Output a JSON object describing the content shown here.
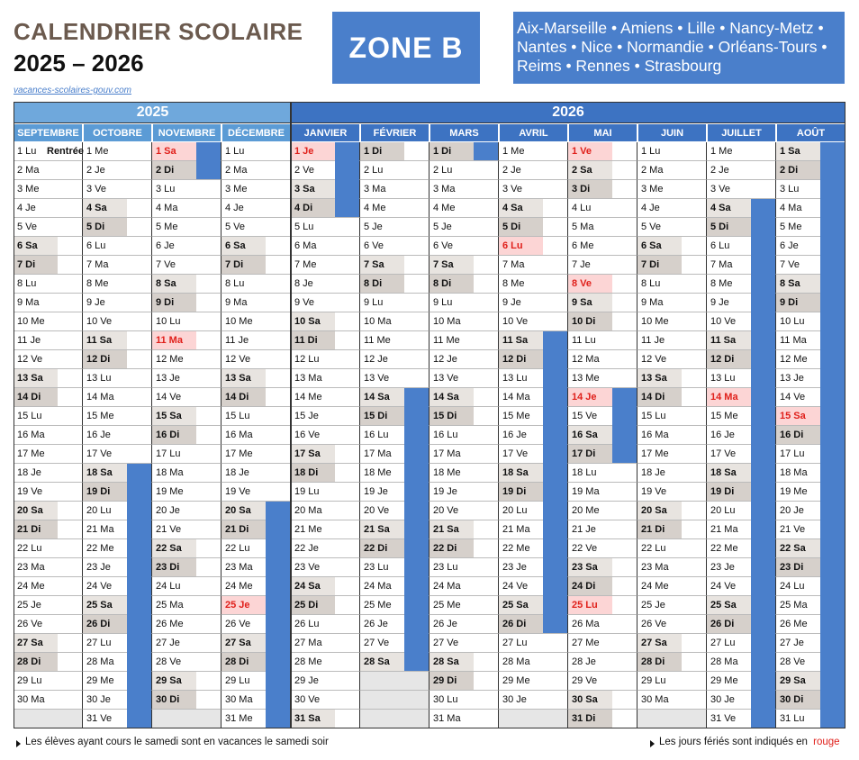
{
  "header": {
    "title": "CALENDRIER SCOLAIRE",
    "years": "2025 – 2026",
    "source": "vacances-scolaires-gouv.com",
    "zone": "ZONE B",
    "academies": [
      "Aix-Marseille • Amiens • Lille • Nancy-Metz •",
      "Nantes • Nice • Normandie • Orléans-Tours •",
      "Reims • Rennes • Strasbourg"
    ]
  },
  "calendar": {
    "years": [
      "2025",
      "2026"
    ],
    "months": [
      {
        "name": "SEPTEMBRE",
        "note": {
          "day": 1,
          "text": "Rentrée"
        },
        "holidays": [],
        "days": [
          "1 Lu",
          "2 Ma",
          "3 Me",
          "4 Je",
          "5 Ve",
          "6 Sa",
          "7 Di",
          "8 Lu",
          "9 Ma",
          "10 Me",
          "11 Je",
          "12 Ve",
          "13 Sa",
          "14 Di",
          "15 Lu",
          "16 Ma",
          "17 Me",
          "18 Je",
          "19 Ve",
          "20 Sa",
          "21 Di",
          "22 Lu",
          "23 Ma",
          "24 Me",
          "25 Je",
          "26 Ve",
          "27 Sa",
          "28 Di",
          "29 Lu",
          "30 Ma"
        ]
      },
      {
        "name": "OCTOBRE",
        "holidays": [],
        "vacation": [
          18,
          31
        ],
        "days": [
          "1 Me",
          "2 Je",
          "3 Ve",
          "4 Sa",
          "5 Di",
          "6 Lu",
          "7 Ma",
          "8 Me",
          "9 Je",
          "10 Ve",
          "11 Sa",
          "12 Di",
          "13 Lu",
          "14 Ma",
          "15 Me",
          "16 Je",
          "17 Ve",
          "18 Sa",
          "19 Di",
          "20 Lu",
          "21 Ma",
          "22 Me",
          "23 Je",
          "24 Ve",
          "25 Sa",
          "26 Di",
          "27 Lu",
          "28 Ma",
          "29 Me",
          "30 Je",
          "31 Ve"
        ]
      },
      {
        "name": "NOVEMBRE",
        "holidays": [
          1,
          11
        ],
        "vacation": [
          1,
          2
        ],
        "days": [
          "1 Sa",
          "2 Di",
          "3 Lu",
          "4 Ma",
          "5 Me",
          "6 Je",
          "7 Ve",
          "8 Sa",
          "9 Di",
          "10 Lu",
          "11 Ma",
          "12 Me",
          "13 Je",
          "14 Ve",
          "15 Sa",
          "16 Di",
          "17 Lu",
          "18 Ma",
          "19 Me",
          "20 Je",
          "21 Ve",
          "22 Sa",
          "23 Di",
          "24 Lu",
          "25 Ma",
          "26 Me",
          "27 Je",
          "28 Ve",
          "29 Sa",
          "30 Di"
        ]
      },
      {
        "name": "DÉCEMBRE",
        "holidays": [
          25
        ],
        "vacation": [
          20,
          31
        ],
        "days": [
          "1 Lu",
          "2 Ma",
          "3 Me",
          "4 Je",
          "5 Ve",
          "6 Sa",
          "7 Di",
          "8 Lu",
          "9 Ma",
          "10 Me",
          "11 Je",
          "12 Ve",
          "13 Sa",
          "14 Di",
          "15 Lu",
          "16 Ma",
          "17 Me",
          "18 Je",
          "19 Ve",
          "20 Sa",
          "21 Di",
          "22 Lu",
          "23 Ma",
          "24 Me",
          "25 Je",
          "26 Ve",
          "27 Sa",
          "28 Di",
          "29 Lu",
          "30 Ma",
          "31 Me"
        ]
      },
      {
        "name": "JANVIER",
        "holidays": [
          1
        ],
        "vacation": [
          1,
          4
        ],
        "days": [
          "1 Je",
          "2 Ve",
          "3 Sa",
          "4 Di",
          "5 Lu",
          "6 Ma",
          "7 Me",
          "8 Je",
          "9 Ve",
          "10 Sa",
          "11 Di",
          "12 Lu",
          "13 Ma",
          "14 Me",
          "15 Je",
          "16 Ve",
          "17 Sa",
          "18 Di",
          "19 Lu",
          "20 Ma",
          "21 Me",
          "22 Je",
          "23 Ve",
          "24 Sa",
          "25 Di",
          "26 Lu",
          "27 Ma",
          "28 Me",
          "29 Je",
          "30 Ve",
          "31 Sa"
        ]
      },
      {
        "name": "FÉVRIER",
        "holidays": [],
        "vacation": [
          14,
          28
        ],
        "days": [
          "1 Di",
          "2 Lu",
          "3 Ma",
          "4 Me",
          "5 Je",
          "6 Ve",
          "7 Sa",
          "8 Di",
          "9 Lu",
          "10 Ma",
          "11 Me",
          "12 Je",
          "13 Ve",
          "14 Sa",
          "15 Di",
          "16 Lu",
          "17 Ma",
          "18 Me",
          "19 Je",
          "20 Ve",
          "21 Sa",
          "22 Di",
          "23 Lu",
          "24 Ma",
          "25 Me",
          "26 Je",
          "27 Ve",
          "28 Sa"
        ]
      },
      {
        "name": "MARS",
        "holidays": [],
        "vacation": [
          1,
          1
        ],
        "days": [
          "1 Di",
          "2 Lu",
          "3 Ma",
          "4 Me",
          "5 Je",
          "6 Ve",
          "7 Sa",
          "8 Di",
          "9 Lu",
          "10 Ma",
          "11 Me",
          "12 Je",
          "13 Ve",
          "14 Sa",
          "15 Di",
          "16 Lu",
          "17 Ma",
          "18 Me",
          "19 Je",
          "20 Ve",
          "21 Sa",
          "22 Di",
          "23 Lu",
          "24 Ma",
          "25 Me",
          "26 Je",
          "27 Ve",
          "28 Sa",
          "29 Di",
          "30 Lu",
          "31 Ma"
        ]
      },
      {
        "name": "AVRIL",
        "holidays": [
          6
        ],
        "vacation": [
          11,
          26
        ],
        "days": [
          "1 Me",
          "2 Je",
          "3 Ve",
          "4 Sa",
          "5 Di",
          "6 Lu",
          "7 Ma",
          "8 Me",
          "9 Je",
          "10 Ve",
          "11 Sa",
          "12 Di",
          "13 Lu",
          "14 Ma",
          "15 Me",
          "16 Je",
          "17 Ve",
          "18 Sa",
          "19 Di",
          "20 Lu",
          "21 Ma",
          "22 Me",
          "23 Je",
          "24 Ve",
          "25 Sa",
          "26 Di",
          "27 Lu",
          "28 Ma",
          "29 Me",
          "30 Je"
        ]
      },
      {
        "name": "MAI",
        "holidays": [
          1,
          8,
          14,
          25
        ],
        "vacation": [
          14,
          17
        ],
        "days": [
          "1 Ve",
          "2 Sa",
          "3 Di",
          "4 Lu",
          "5 Ma",
          "6 Me",
          "7 Je",
          "8 Ve",
          "9 Sa",
          "10 Di",
          "11 Lu",
          "12 Ma",
          "13 Me",
          "14 Je",
          "15 Ve",
          "16 Sa",
          "17 Di",
          "18 Lu",
          "19 Ma",
          "20 Me",
          "21 Je",
          "22 Ve",
          "23 Sa",
          "24 Di",
          "25 Lu",
          "26 Ma",
          "27 Me",
          "28 Je",
          "29 Ve",
          "30 Sa",
          "31 Di"
        ]
      },
      {
        "name": "JUIN",
        "holidays": [],
        "days": [
          "1 Lu",
          "2 Ma",
          "3 Me",
          "4 Je",
          "5 Ve",
          "6 Sa",
          "7 Di",
          "8 Lu",
          "9 Ma",
          "10 Me",
          "11 Je",
          "12 Ve",
          "13 Sa",
          "14 Di",
          "15 Lu",
          "16 Ma",
          "17 Me",
          "18 Je",
          "19 Ve",
          "20 Sa",
          "21 Di",
          "22 Lu",
          "23 Ma",
          "24 Me",
          "25 Je",
          "26 Ve",
          "27 Sa",
          "28 Di",
          "29 Lu",
          "30 Ma"
        ]
      },
      {
        "name": "JUILLET",
        "holidays": [
          14
        ],
        "vacation": [
          4,
          31
        ],
        "days": [
          "1 Me",
          "2 Je",
          "3 Ve",
          "4 Sa",
          "5 Di",
          "6 Lu",
          "7 Ma",
          "8 Me",
          "9 Je",
          "10 Ve",
          "11 Sa",
          "12 Di",
          "13 Lu",
          "14 Ma",
          "15 Me",
          "16 Je",
          "17 Ve",
          "18 Sa",
          "19 Di",
          "20 Lu",
          "21 Ma",
          "22 Me",
          "23 Je",
          "24 Ve",
          "25 Sa",
          "26 Di",
          "27 Lu",
          "28 Ma",
          "29 Me",
          "30 Je",
          "31 Ve"
        ]
      },
      {
        "name": "AOÛT",
        "holidays": [
          15
        ],
        "vacation": [
          1,
          31
        ],
        "days": [
          "1 Sa",
          "2 Di",
          "3 Lu",
          "4 Ma",
          "5 Me",
          "6 Je",
          "7 Ve",
          "8 Sa",
          "9 Di",
          "10 Lu",
          "11 Ma",
          "12 Me",
          "13 Je",
          "14 Ve",
          "15 Sa",
          "16 Di",
          "17 Lu",
          "18 Ma",
          "19 Me",
          "20 Je",
          "21 Ve",
          "22 Sa",
          "23 Di",
          "24 Lu",
          "25 Ma",
          "26 Me",
          "27 Je",
          "28 Ve",
          "29 Sa",
          "30 Di",
          "31 Lu"
        ]
      }
    ]
  },
  "footer": {
    "left": "Les élèves ayant cours le samedi sont en vacances le samedi soir",
    "right": "Les jours fériés sont indiqués en",
    "right_highlight": "rouge"
  }
}
